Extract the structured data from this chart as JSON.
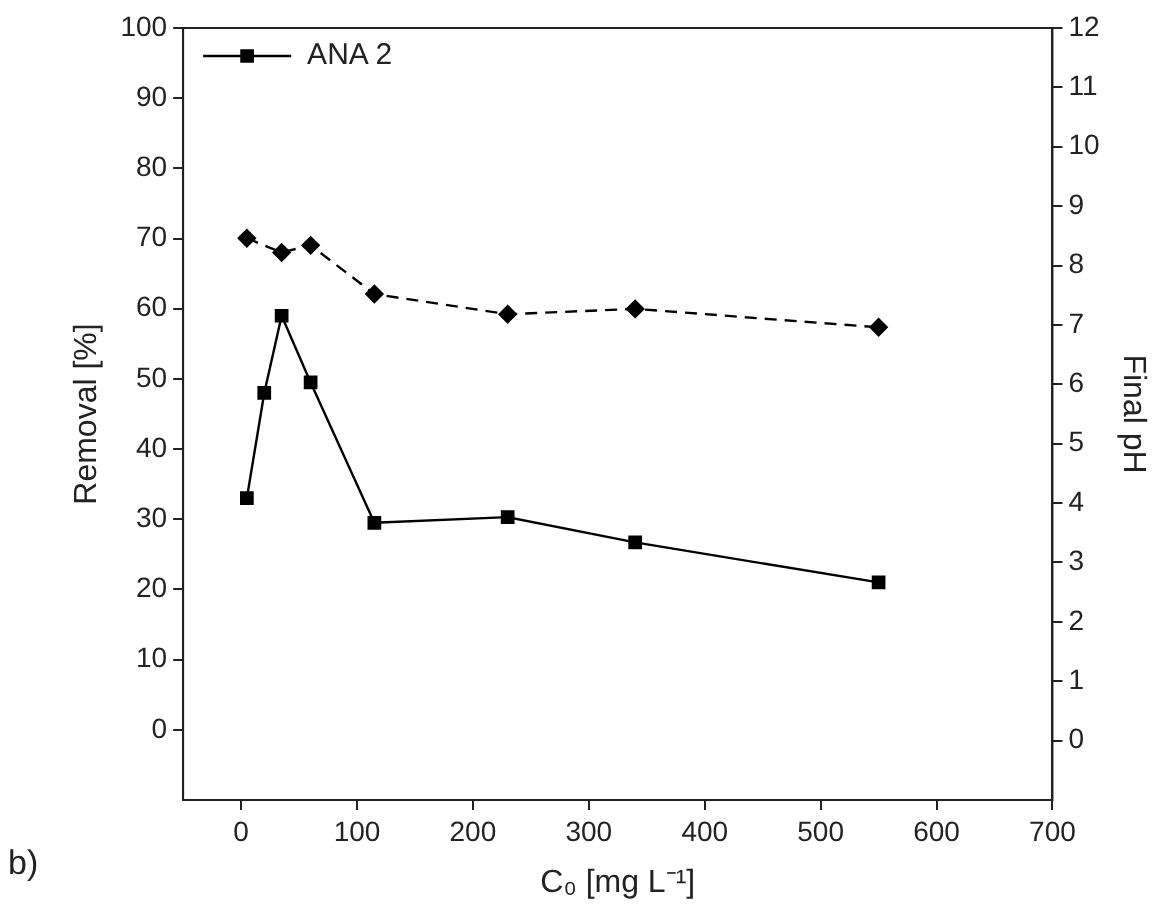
{
  "chart_data": {
    "type": "line",
    "xlabel": "C₀ [mg L⁻¹]",
    "ylabel": "Removal [%]",
    "y2label": "Final pH",
    "x": [
      5,
      20,
      35,
      60,
      115,
      230,
      340,
      550
    ],
    "series": [
      {
        "name": "ANA 2",
        "color": "#000000",
        "marker": "square",
        "line_style": "solid",
        "values": [
          33,
          48,
          59,
          49.5,
          29.5,
          30.3,
          26.7,
          21
        ]
      },
      {
        "color": "#000000",
        "marker": "diamond",
        "x": [
          5,
          35,
          60,
          115,
          230,
          340,
          550
        ],
        "line_style": "dashed",
        "axis": "y2",
        "values": [
          8.46,
          8.22,
          8.34,
          7.52,
          7.18,
          7.27,
          6.96
        ]
      }
    ],
    "xlim": [
      -50,
      700
    ],
    "xticks": [
      0,
      100,
      200,
      300,
      400,
      500,
      600,
      700
    ],
    "ylim": [
      -10,
      100
    ],
    "yticks": [
      0,
      10,
      20,
      30,
      40,
      50,
      60,
      70,
      80,
      90,
      100
    ],
    "y2lim": [
      -1,
      12
    ],
    "y2ticks": [
      0,
      1,
      2,
      3,
      4,
      5,
      6,
      7,
      8,
      9,
      10,
      11,
      12
    ],
    "grid": false,
    "legend": "top left",
    "annotations": [
      "b)"
    ]
  }
}
